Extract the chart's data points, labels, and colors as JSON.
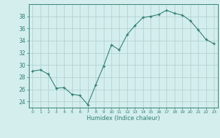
{
  "x": [
    0,
    1,
    2,
    3,
    4,
    5,
    6,
    7,
    8,
    9,
    10,
    11,
    12,
    13,
    14,
    15,
    16,
    17,
    18,
    19,
    20,
    21,
    22,
    23
  ],
  "y": [
    29.0,
    29.2,
    28.5,
    26.2,
    26.3,
    25.2,
    25.0,
    23.5,
    26.7,
    29.8,
    33.3,
    32.5,
    35.0,
    36.5,
    37.8,
    38.0,
    38.3,
    39.0,
    38.5,
    38.2,
    37.3,
    35.8,
    34.2,
    33.5
  ],
  "line_color": "#2e7d6e",
  "marker_color": "#2e7d6e",
  "bg_color": "#d4eeee",
  "grid_color": "#aacccc",
  "xlabel": "Humidex (Indice chaleur)",
  "ylim": [
    23,
    40
  ],
  "yticks": [
    24,
    26,
    28,
    30,
    32,
    34,
    36,
    38
  ],
  "xticks": [
    0,
    1,
    2,
    3,
    4,
    5,
    6,
    7,
    8,
    9,
    10,
    11,
    12,
    13,
    14,
    15,
    16,
    17,
    18,
    19,
    20,
    21,
    22,
    23
  ],
  "xlim": [
    -0.5,
    23.5
  ]
}
